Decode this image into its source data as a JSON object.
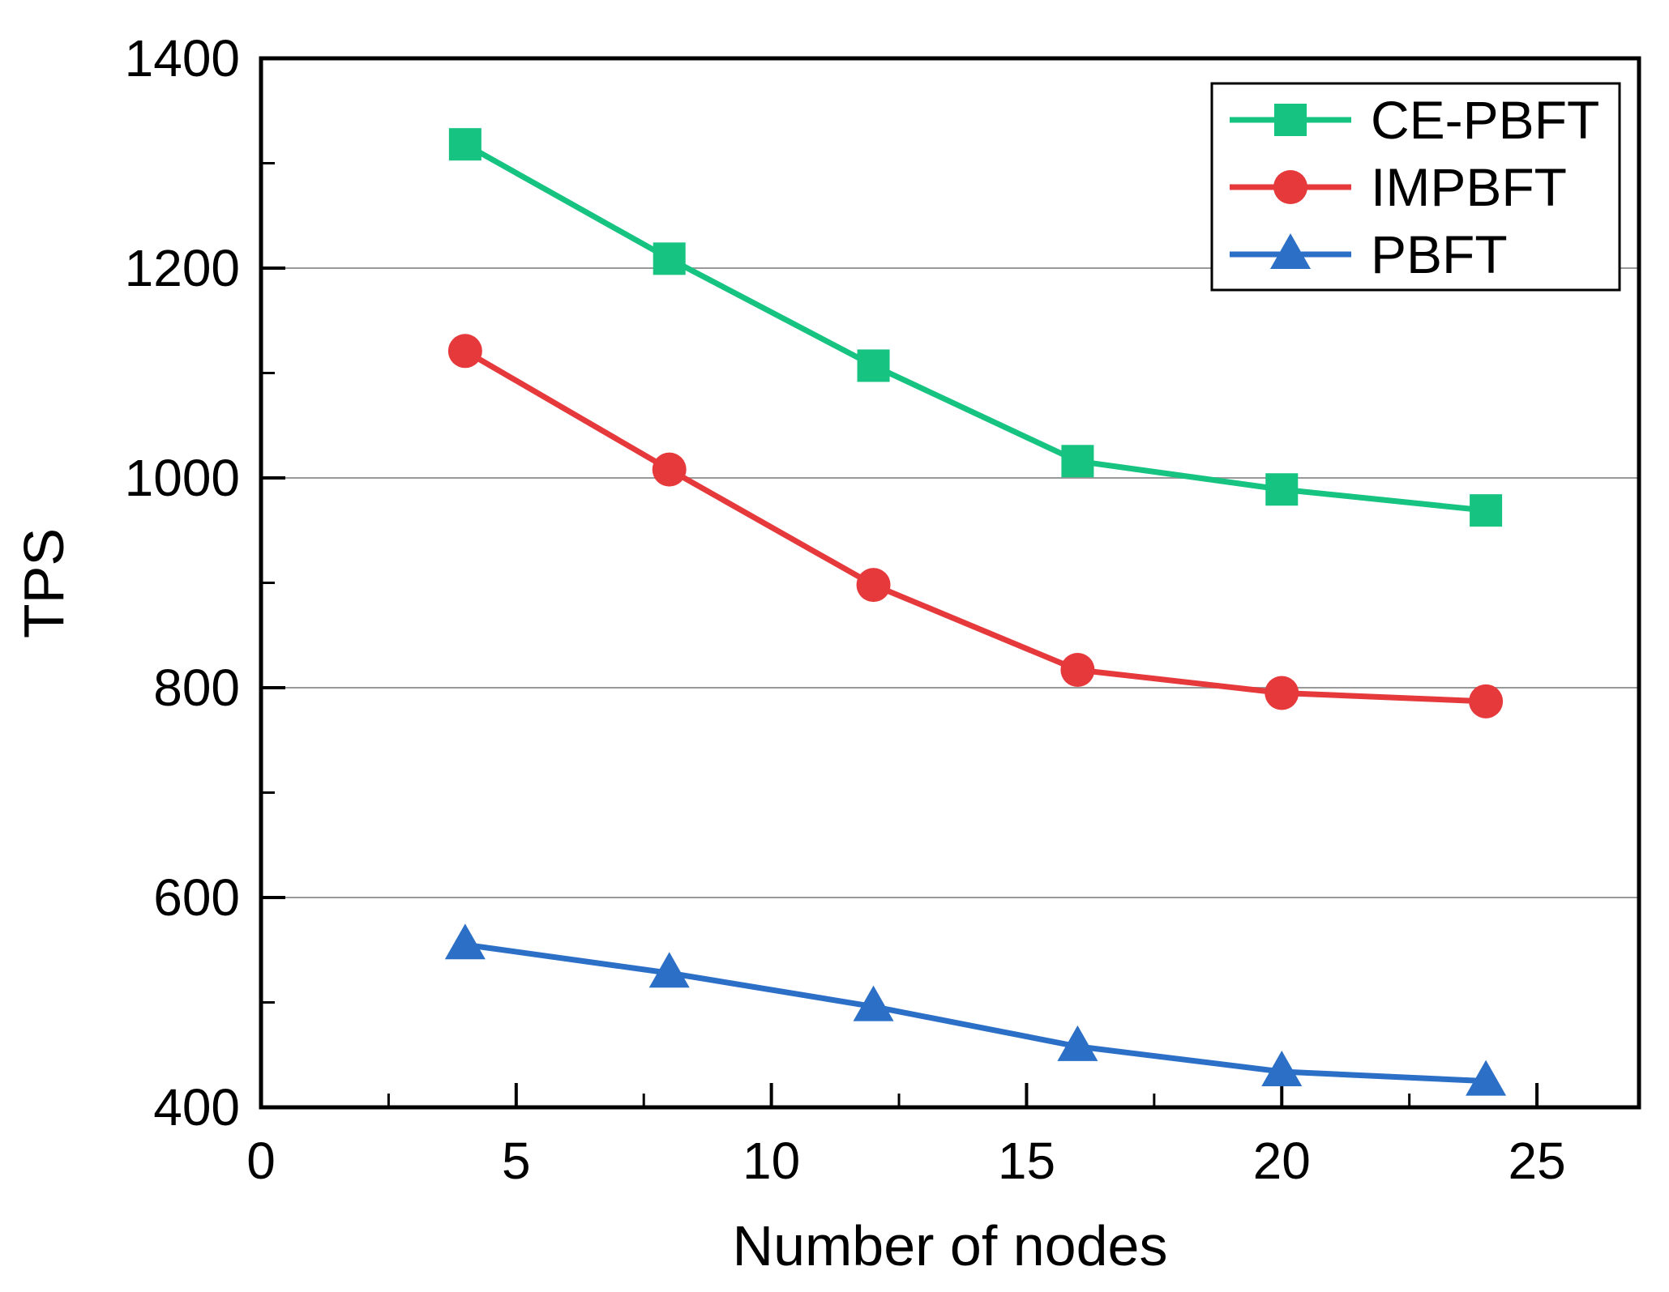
{
  "figure": {
    "background": "#ffffff"
  },
  "chart_data": {
    "type": "line",
    "title": "",
    "xlabel": "Number of nodes",
    "ylabel": "TPS",
    "x": [
      4,
      8,
      12,
      16,
      20,
      24
    ],
    "series": [
      {
        "name": "CE-PBFT",
        "marker": "square",
        "color": "#16c381",
        "values": [
          1318,
          1209,
          1107,
          1016,
          989,
          969
        ]
      },
      {
        "name": "IMPBFT",
        "marker": "circle",
        "color": "#e6393c",
        "values": [
          1121,
          1008,
          898,
          817,
          795,
          787
        ]
      },
      {
        "name": "PBFT",
        "marker": "triangle",
        "color": "#2c6fc7",
        "values": [
          555,
          528,
          496,
          458,
          434,
          425
        ]
      }
    ],
    "xlim": [
      0,
      27
    ],
    "ylim": [
      400,
      1400
    ],
    "x_major_ticks": [
      0,
      5,
      10,
      15,
      20,
      25
    ],
    "x_minor_ticks": [
      2.5,
      7.5,
      12.5,
      17.5,
      22.5
    ],
    "y_major_ticks": [
      400,
      600,
      800,
      1000,
      1200,
      1400
    ],
    "y_minor_ticks": [
      500,
      700,
      900,
      1100,
      1300
    ],
    "gridlines": "horizontal-at-major",
    "grid_color": "#999999",
    "axis_color": "#000000",
    "legend_position": "top-right"
  }
}
